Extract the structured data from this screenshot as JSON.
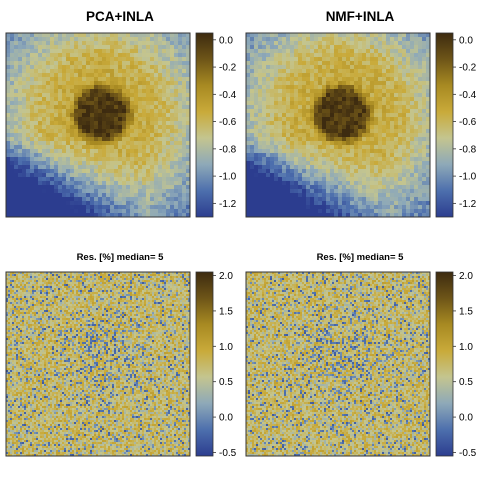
{
  "colors": {
    "palette": [
      "#2c3d8f",
      "#4d6fad",
      "#8ea9b8",
      "#c4c58f",
      "#c9aa3a",
      "#a88a22",
      "#6e5518",
      "#3d2b10"
    ],
    "frame": "#333333",
    "text": "#000000"
  },
  "chart_data": [
    {
      "type": "heatmap",
      "title": "PCA+INLA",
      "pattern": "ring",
      "colorbar": {
        "ticks": [
          "0.0",
          "-0.2",
          "-0.4",
          "-0.6",
          "-0.8",
          "-1.0",
          "-1.2"
        ],
        "range": [
          -1.3,
          0.05
        ]
      }
    },
    {
      "type": "heatmap",
      "title": "NMF+INLA",
      "pattern": "ring",
      "colorbar": {
        "ticks": [
          "0.0",
          "-0.2",
          "-0.4",
          "-0.6",
          "-0.8",
          "-1.0",
          "-1.2"
        ],
        "range": [
          -1.3,
          0.05
        ]
      }
    },
    {
      "type": "heatmap",
      "title": "Res. [%]  median= 5",
      "pattern": "residual",
      "colorbar": {
        "ticks": [
          "2.0",
          "1.5",
          "1.0",
          "0.5",
          "0.0",
          "-0.5"
        ],
        "range": [
          -0.55,
          2.05
        ]
      }
    },
    {
      "type": "heatmap",
      "title": "Res. [%]  median= 5",
      "pattern": "residual",
      "colorbar": {
        "ticks": [
          "2.0",
          "1.5",
          "1.0",
          "0.5",
          "0.0",
          "-0.5"
        ],
        "range": [
          -0.55,
          2.05
        ]
      }
    }
  ]
}
